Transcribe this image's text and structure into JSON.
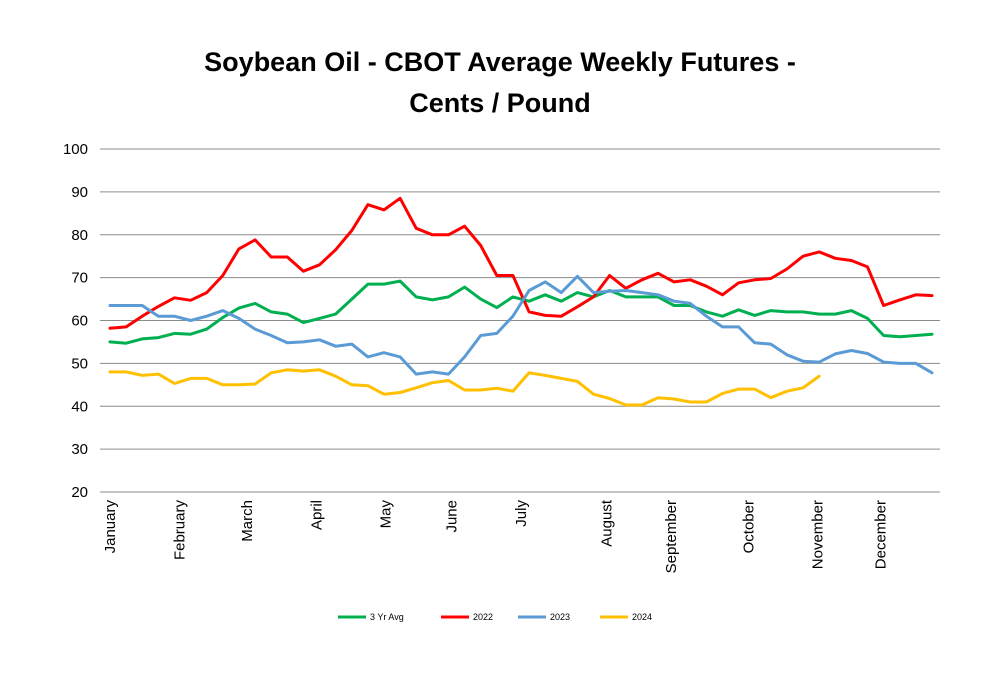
{
  "chart_data": {
    "type": "line",
    "title_line1": "Soybean Oil - CBOT Average Weekly Futures -",
    "title_line2": "Cents / Pound",
    "xlabel": "",
    "ylabel": "",
    "ylim": [
      20,
      100
    ],
    "yticks": [
      20,
      30,
      40,
      50,
      60,
      70,
      80,
      90,
      100
    ],
    "grid": true,
    "legend_position": "bottom",
    "months": [
      {
        "label": "January",
        "week": 0
      },
      {
        "label": "February",
        "week": 4.3
      },
      {
        "label": "March",
        "week": 8.5
      },
      {
        "label": "April",
        "week": 12.8
      },
      {
        "label": "May",
        "week": 17.1
      },
      {
        "label": "June",
        "week": 21.2
      },
      {
        "label": "July",
        "week": 25.5
      },
      {
        "label": "August",
        "week": 30.8
      },
      {
        "label": "September",
        "week": 34.8
      },
      {
        "label": "October",
        "week": 39.6
      },
      {
        "label": "November",
        "week": 43.9
      },
      {
        "label": "December",
        "week": 47.8
      }
    ],
    "series": [
      {
        "name": "3 Yr Avg",
        "color": "#00b050",
        "values": [
          55,
          54.7,
          55.7,
          56,
          57,
          56.8,
          58,
          60.7,
          62.9,
          64,
          62,
          61.5,
          59.5,
          60.5,
          61.5,
          65,
          68.5,
          68.5,
          69.2,
          65.5,
          64.8,
          65.5,
          67.8,
          65,
          63,
          65.5,
          64.5,
          66,
          64.5,
          66.5,
          65.5,
          67,
          65.5,
          65.5,
          65.5,
          63.5,
          63.5,
          62,
          61,
          62.5,
          61.2,
          62.3,
          62,
          62,
          61.5,
          61.5,
          62.3,
          60.5,
          56.5,
          56.2,
          56.5,
          56.8
        ]
      },
      {
        "name": "2022",
        "color": "#ff0000",
        "values": [
          58.2,
          58.5,
          61,
          63.3,
          65.3,
          64.7,
          66.5,
          70.5,
          76.7,
          78.8,
          74.8,
          74.8,
          71.5,
          73,
          76.5,
          81,
          87,
          85.8,
          88.5,
          81.5,
          80,
          80,
          82,
          77.5,
          70.5,
          70.5,
          62,
          61.2,
          61,
          63.2,
          65.5,
          70.5,
          67.5,
          69.5,
          71,
          69,
          69.5,
          68,
          66,
          68.8,
          69.5,
          69.8,
          72,
          75,
          76,
          74.5,
          74,
          72.5,
          63.5,
          64.8,
          66,
          65.8
        ]
      },
      {
        "name": "2023",
        "color": "#5b9bd5",
        "values": [
          63.5,
          63.5,
          63.5,
          61,
          61,
          60,
          61,
          62.3,
          60.5,
          58,
          56.5,
          54.8,
          55,
          55.5,
          54,
          54.5,
          51.5,
          52.5,
          51.5,
          47.5,
          48,
          47.5,
          51.5,
          56.5,
          57,
          61,
          67,
          69,
          66.5,
          70.3,
          66.5,
          66.8,
          67,
          66.5,
          66,
          64.5,
          64,
          61,
          58.5,
          58.5,
          54.8,
          54.5,
          52,
          50.5,
          50.3,
          52.2,
          53,
          52.3,
          50.3,
          50,
          50,
          47.8
        ]
      },
      {
        "name": "2024",
        "color": "#ffc000",
        "values": [
          48,
          48,
          47.2,
          47.5,
          45.3,
          46.5,
          46.5,
          45,
          45,
          45.2,
          47.8,
          48.5,
          48.2,
          48.5,
          47,
          45,
          44.8,
          42.8,
          43.2,
          44.3,
          45.5,
          46,
          43.8,
          43.8,
          44.2,
          43.5,
          47.8,
          47.2,
          46.5,
          45.8,
          42.8,
          41.8,
          40.3,
          40.3,
          42,
          41.7,
          41,
          41,
          43,
          44,
          44,
          42,
          43.5,
          44.3,
          47
        ]
      }
    ]
  }
}
